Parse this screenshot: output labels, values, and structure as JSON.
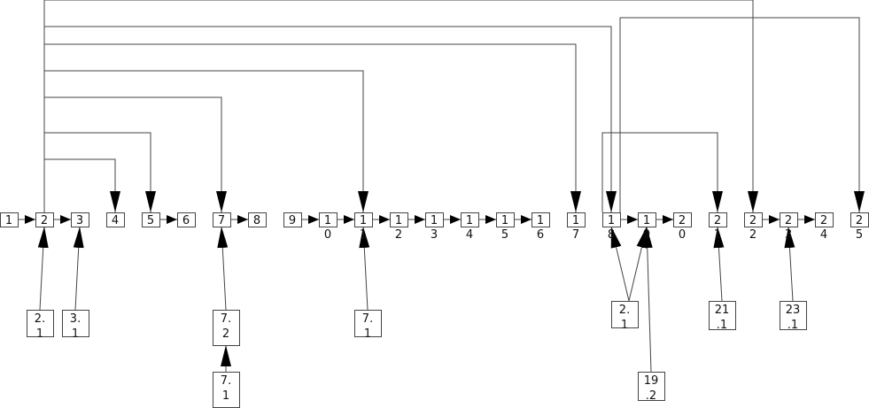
{
  "diagram": {
    "type": "directed-graph",
    "colors": {
      "stroke": "#444444",
      "arrowhead": "#000000",
      "fill": "#ffffff"
    },
    "nodes": [
      {
        "id": "1",
        "label": "1"
      },
      {
        "id": "2",
        "label": "2"
      },
      {
        "id": "3",
        "label": "3"
      },
      {
        "id": "4",
        "label": "4"
      },
      {
        "id": "5",
        "label": "5"
      },
      {
        "id": "6",
        "label": "6"
      },
      {
        "id": "7",
        "label": "7"
      },
      {
        "id": "8",
        "label": "8"
      },
      {
        "id": "9",
        "label": "9"
      },
      {
        "id": "10",
        "label": "10"
      },
      {
        "id": "11",
        "label": "11"
      },
      {
        "id": "12",
        "label": "12"
      },
      {
        "id": "13",
        "label": "13"
      },
      {
        "id": "14",
        "label": "14"
      },
      {
        "id": "15",
        "label": "15"
      },
      {
        "id": "16",
        "label": "16"
      },
      {
        "id": "17",
        "label": "17"
      },
      {
        "id": "18",
        "label": "18"
      },
      {
        "id": "19",
        "label": "19"
      },
      {
        "id": "20",
        "label": "20"
      },
      {
        "id": "21",
        "label": "21"
      },
      {
        "id": "22",
        "label": "22"
      },
      {
        "id": "23",
        "label": "23"
      },
      {
        "id": "24",
        "label": "24"
      },
      {
        "id": "25",
        "label": "25"
      },
      {
        "id": "2.1a",
        "label": "2.1"
      },
      {
        "id": "3.1",
        "label": "3.1"
      },
      {
        "id": "7.2",
        "label": "7.2"
      },
      {
        "id": "7.1a",
        "label": "7.1"
      },
      {
        "id": "7.1b",
        "label": "7.1"
      },
      {
        "id": "2.1b",
        "label": "2.1"
      },
      {
        "id": "19.2",
        "label": "19.2"
      },
      {
        "id": "21.1",
        "label": "21.1"
      },
      {
        "id": "23.1",
        "label": "23.1"
      }
    ],
    "edges": [
      [
        "1",
        "2"
      ],
      [
        "2",
        "3"
      ],
      [
        "5",
        "6"
      ],
      [
        "7",
        "8"
      ],
      [
        "9",
        "10"
      ],
      [
        "10",
        "11"
      ],
      [
        "11",
        "12"
      ],
      [
        "12",
        "13"
      ],
      [
        "13",
        "14"
      ],
      [
        "14",
        "15"
      ],
      [
        "15",
        "16"
      ],
      [
        "18",
        "19"
      ],
      [
        "19",
        "20"
      ],
      [
        "22",
        "23"
      ],
      [
        "23",
        "24"
      ],
      [
        "2",
        "22"
      ],
      [
        "2",
        "18"
      ],
      [
        "2",
        "17"
      ],
      [
        "2",
        "11"
      ],
      [
        "2",
        "7"
      ],
      [
        "2",
        "5"
      ],
      [
        "2",
        "4"
      ],
      [
        "18",
        "25"
      ],
      [
        "18",
        "21"
      ],
      [
        "2.1a",
        "2"
      ],
      [
        "3.1",
        "3"
      ],
      [
        "7.2",
        "7"
      ],
      [
        "7.1a",
        "7.2"
      ],
      [
        "7.1b",
        "11"
      ],
      [
        "2.1b",
        "18"
      ],
      [
        "2.1b",
        "19"
      ],
      [
        "19.2",
        "19"
      ],
      [
        "21.1",
        "21"
      ],
      [
        "23.1",
        "23"
      ]
    ]
  }
}
